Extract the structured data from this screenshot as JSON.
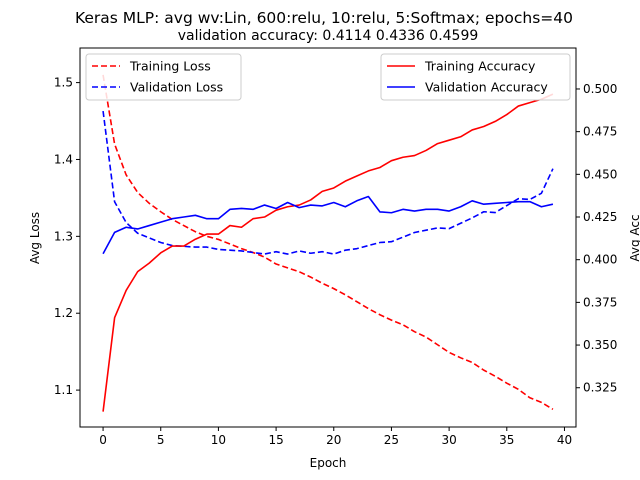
{
  "chart_data": {
    "type": "line",
    "title": "Keras MLP: avg wv:Lin, 600:relu, 10:relu, 5:Softmax; epochs=40",
    "subtitle": "validation accuracy:  0.4114  0.4336  0.4599",
    "xlabel": "Epoch",
    "ylabel_left": "Avg Loss",
    "ylabel_right": "Avg Acc",
    "xlim": [
      -2,
      41
    ],
    "ylim_left": [
      1.052,
      1.545
    ],
    "ylim_right": [
      0.302,
      0.524
    ],
    "xticks": [
      0,
      5,
      10,
      15,
      20,
      25,
      30,
      35,
      40
    ],
    "yticks_left": [
      1.1,
      1.2,
      1.3,
      1.4,
      1.5
    ],
    "yticks_right": [
      0.325,
      0.35,
      0.375,
      0.4,
      0.425,
      0.45,
      0.475,
      0.5
    ],
    "grid": false,
    "legend_left": {
      "placement": "upper-left",
      "entries": [
        "Training Loss",
        "Validation Loss"
      ]
    },
    "legend_right": {
      "placement": "upper-right",
      "entries": [
        "Training Accuracy",
        "Validation Accuracy"
      ]
    },
    "series": [
      {
        "name": "Training Loss",
        "axis": "left",
        "color": "#ff0000",
        "style": "dashed",
        "x": [
          0,
          1,
          2,
          3,
          4,
          5,
          6,
          7,
          8,
          9,
          10,
          11,
          12,
          13,
          14,
          15,
          16,
          17,
          18,
          19,
          20,
          21,
          22,
          23,
          24,
          25,
          26,
          27,
          28,
          29,
          30,
          31,
          32,
          33,
          34,
          35,
          36,
          37,
          38,
          39
        ],
        "values": [
          1.51,
          1.42,
          1.38,
          1.357,
          1.343,
          1.332,
          1.322,
          1.314,
          1.306,
          1.3,
          1.296,
          1.29,
          1.284,
          1.279,
          1.273,
          1.264,
          1.259,
          1.254,
          1.247,
          1.239,
          1.232,
          1.224,
          1.215,
          1.206,
          1.198,
          1.191,
          1.185,
          1.176,
          1.169,
          1.159,
          1.149,
          1.142,
          1.136,
          1.126,
          1.118,
          1.109,
          1.101,
          1.09,
          1.084,
          1.075
        ]
      },
      {
        "name": "Validation Loss",
        "axis": "left",
        "color": "#0000ff",
        "style": "dashed",
        "x": [
          0,
          1,
          2,
          3,
          4,
          5,
          6,
          7,
          8,
          9,
          10,
          11,
          12,
          13,
          14,
          15,
          16,
          17,
          18,
          19,
          20,
          21,
          22,
          23,
          24,
          25,
          26,
          27,
          28,
          29,
          30,
          31,
          32,
          33,
          34,
          35,
          36,
          37,
          38,
          39
        ],
        "values": [
          1.463,
          1.345,
          1.318,
          1.304,
          1.298,
          1.292,
          1.288,
          1.287,
          1.286,
          1.286,
          1.283,
          1.282,
          1.281,
          1.279,
          1.277,
          1.28,
          1.277,
          1.281,
          1.278,
          1.28,
          1.277,
          1.282,
          1.284,
          1.288,
          1.292,
          1.293,
          1.299,
          1.305,
          1.308,
          1.311,
          1.31,
          1.317,
          1.324,
          1.332,
          1.331,
          1.34,
          1.349,
          1.348,
          1.356,
          1.388
        ]
      },
      {
        "name": "Training Accuracy",
        "axis": "right",
        "color": "#ff0000",
        "style": "solid",
        "x": [
          0,
          1,
          2,
          3,
          4,
          5,
          6,
          7,
          8,
          9,
          10,
          11,
          12,
          13,
          14,
          15,
          16,
          17,
          18,
          19,
          20,
          21,
          22,
          23,
          24,
          25,
          26,
          27,
          28,
          29,
          30,
          31,
          32,
          33,
          34,
          35,
          36,
          37,
          38,
          39
        ],
        "values": [
          0.311,
          0.366,
          0.382,
          0.393,
          0.398,
          0.404,
          0.408,
          0.408,
          0.412,
          0.415,
          0.415,
          0.42,
          0.419,
          0.424,
          0.425,
          0.429,
          0.431,
          0.432,
          0.435,
          0.44,
          0.442,
          0.446,
          0.449,
          0.452,
          0.454,
          0.458,
          0.46,
          0.461,
          0.464,
          0.468,
          0.47,
          0.472,
          0.476,
          0.478,
          0.481,
          0.485,
          0.49,
          0.492,
          0.494,
          0.497
        ]
      },
      {
        "name": "Validation Accuracy",
        "axis": "right",
        "color": "#0000ff",
        "style": "solid",
        "x": [
          0,
          1,
          2,
          3,
          4,
          5,
          6,
          7,
          8,
          9,
          10,
          11,
          12,
          13,
          14,
          15,
          16,
          17,
          18,
          19,
          20,
          21,
          22,
          23,
          24,
          25,
          26,
          27,
          28,
          29,
          30,
          31,
          32,
          33,
          34,
          35,
          36,
          37,
          38,
          39
        ],
        "values": [
          0.4035,
          0.416,
          0.419,
          0.418,
          0.42,
          0.422,
          0.424,
          0.425,
          0.426,
          0.424,
          0.424,
          0.4295,
          0.43,
          0.4295,
          0.432,
          0.43,
          0.4335,
          0.4305,
          0.432,
          0.4315,
          0.4335,
          0.431,
          0.4345,
          0.437,
          0.428,
          0.4275,
          0.4295,
          0.4285,
          0.4295,
          0.4295,
          0.4285,
          0.431,
          0.4345,
          0.4325,
          0.433,
          0.4335,
          0.434,
          0.434,
          0.431,
          0.4325
        ]
      }
    ]
  }
}
